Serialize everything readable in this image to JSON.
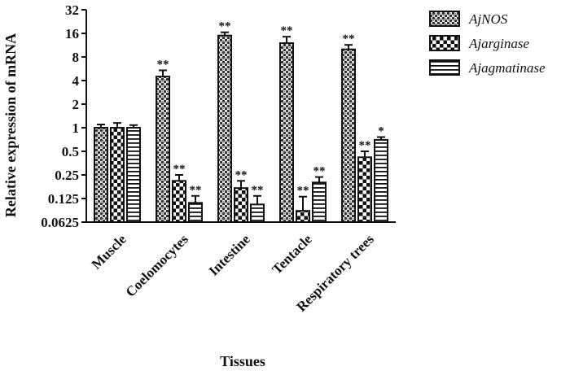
{
  "chart_data": {
    "type": "bar",
    "categories": [
      "Muscle",
      "Coelomocytes",
      "Intestine",
      "Tentacle",
      "Respiratory trees"
    ],
    "series": [
      {
        "name": "AjNOS",
        "values": [
          1.0,
          4.5,
          15.0,
          12.0,
          10.0
        ],
        "errors": [
          0.1,
          0.9,
          1.5,
          2.5,
          1.4
        ],
        "sig": [
          "",
          "**",
          "**",
          "**",
          "**"
        ]
      },
      {
        "name": "Ajarginase",
        "values": [
          1.0,
          0.21,
          0.17,
          0.087,
          0.42
        ],
        "errors": [
          0.15,
          0.04,
          0.04,
          0.045,
          0.08
        ],
        "sig": [
          "",
          "**",
          "**",
          "**",
          "**"
        ]
      },
      {
        "name": "Ajagmatinase",
        "values": [
          1.0,
          0.11,
          0.105,
          0.2,
          0.7
        ],
        "errors": [
          0.08,
          0.025,
          0.03,
          0.035,
          0.06
        ],
        "sig": [
          "",
          "**",
          "**",
          "**",
          "*"
        ]
      }
    ],
    "y_ticks": [
      0.0625,
      0.125,
      0.25,
      0.5,
      1,
      2,
      4,
      8,
      16,
      32
    ],
    "y_tick_labels": [
      "0.0625",
      "0.125",
      "0.25",
      "0.5",
      "1",
      "2",
      "4",
      "8",
      "16",
      "32"
    ],
    "ylim": [
      0.0625,
      32
    ],
    "y_scale": "log2",
    "xlabel": "Tissues",
    "ylabel": "Relative expression of mRNA",
    "legend_position": "top-right",
    "grid": false
  }
}
